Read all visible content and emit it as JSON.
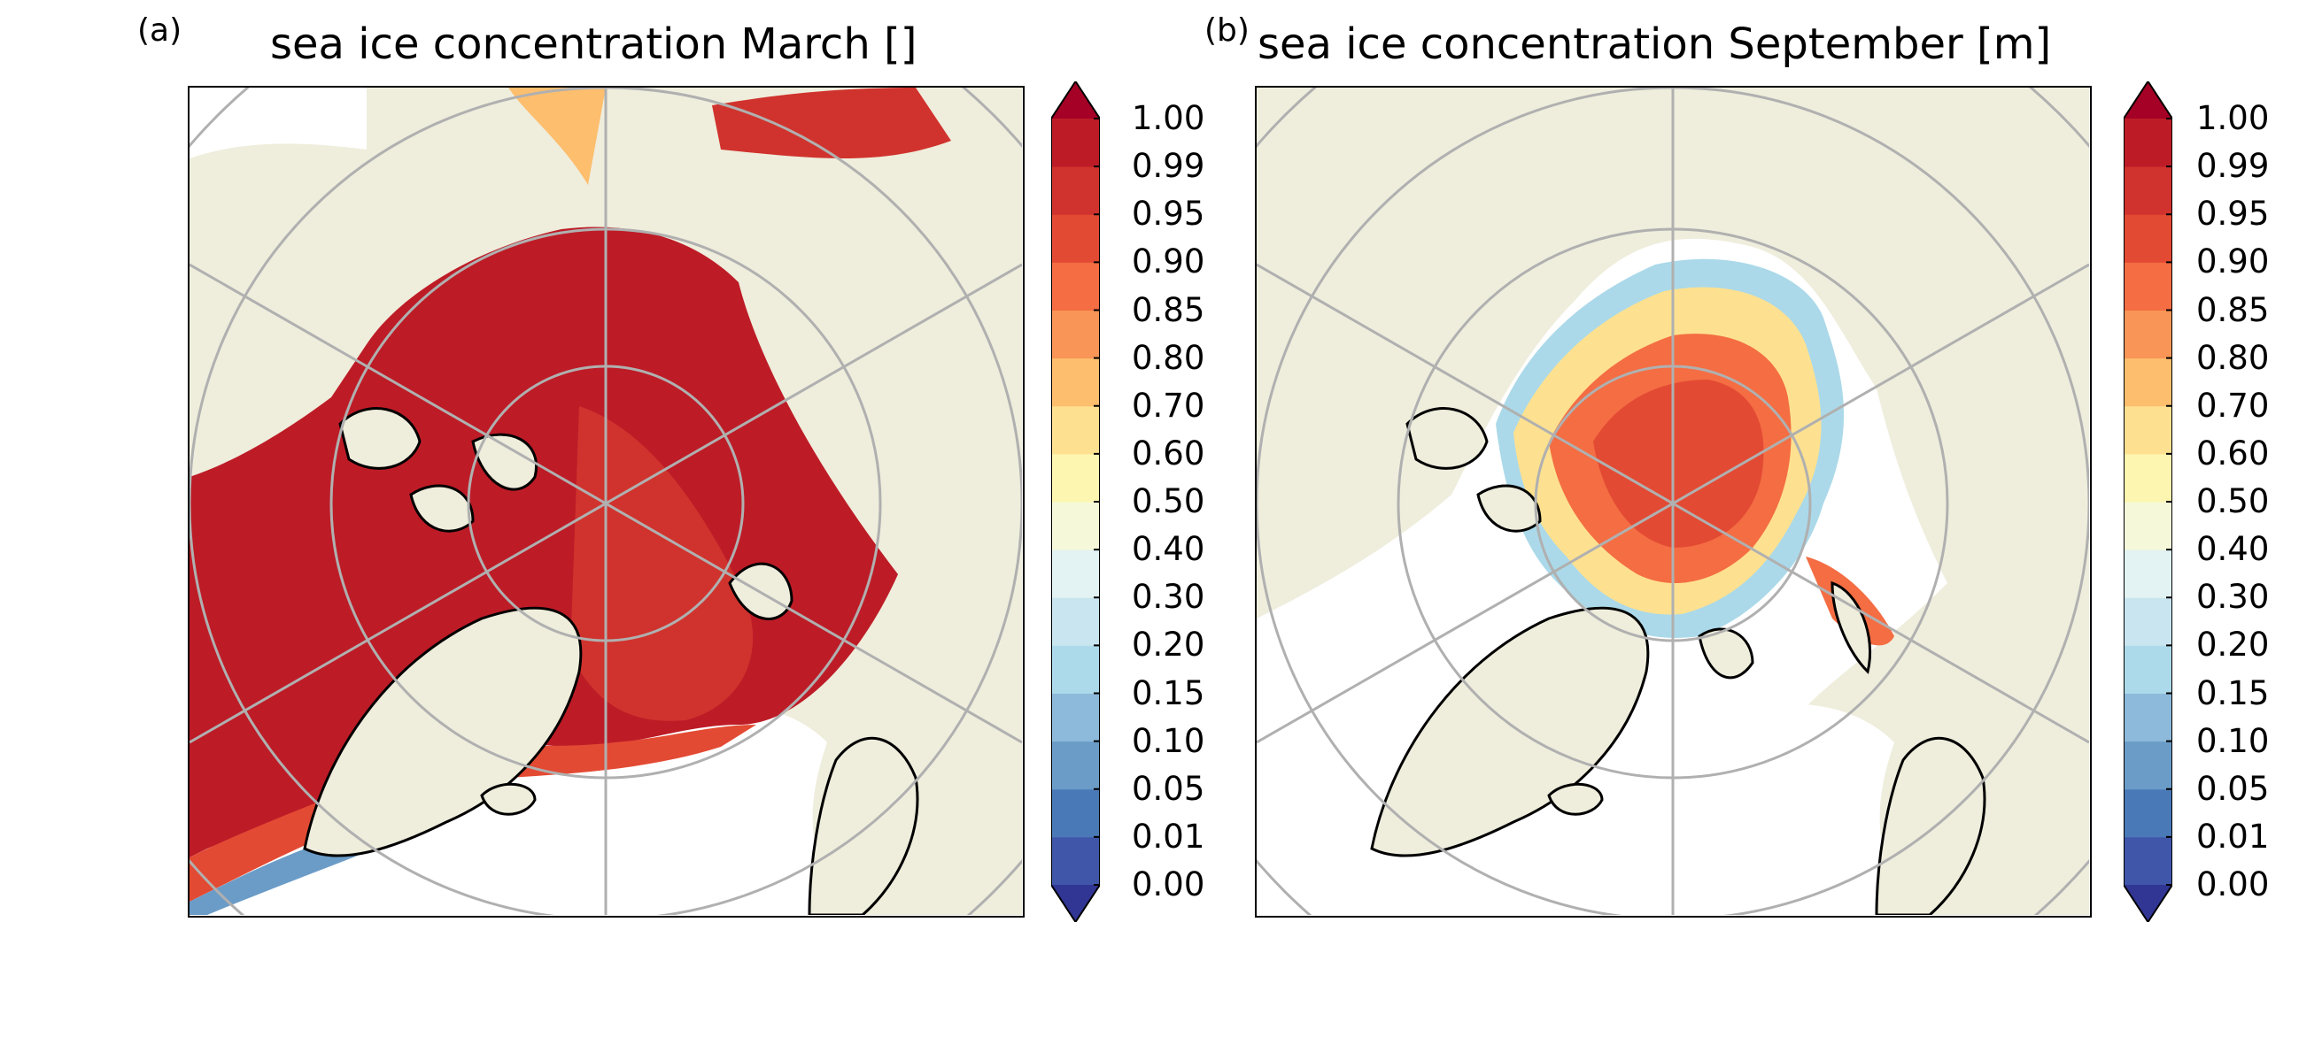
{
  "panels": [
    {
      "letter": "(a)",
      "title": "sea ice concentration March []",
      "month": "March"
    },
    {
      "letter": "(b)",
      "title": "sea ice concentration September [m]",
      "month": "September"
    }
  ],
  "colorbar": {
    "ticks": [
      "1.00",
      "0.99",
      "0.95",
      "0.90",
      "0.85",
      "0.80",
      "0.70",
      "0.60",
      "0.50",
      "0.40",
      "0.30",
      "0.20",
      "0.15",
      "0.10",
      "0.05",
      "0.01",
      "0.00"
    ],
    "colors": [
      "#4056a8",
      "#4a79b7",
      "#6b9cc8",
      "#8dbada",
      "#addaea",
      "#c9e6f0",
      "#e3f2f2",
      "#f5f9d9",
      "#fdf6b0",
      "#fee190",
      "#fdbe6e",
      "#f99556",
      "#f46d43",
      "#e34a33",
      "#d0332d",
      "#bd1c27"
    ],
    "extend_low_color": "#313695",
    "extend_high_color": "#a50026"
  },
  "map_colors": {
    "land": "#efeddc",
    "ocean": "#ffffff",
    "coastline": "#000000",
    "gridline": "#b0b0b0"
  }
}
